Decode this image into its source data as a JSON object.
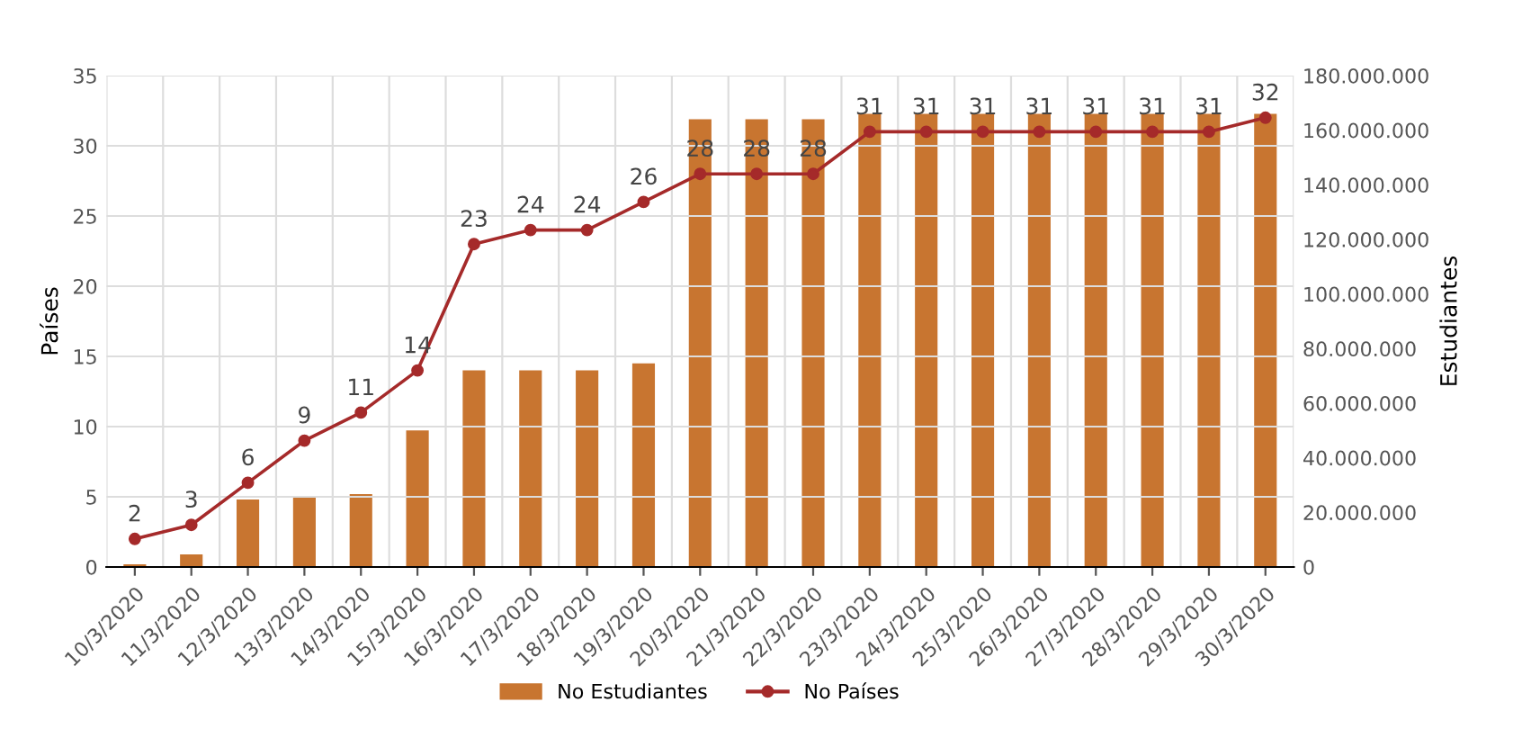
{
  "chart_data": {
    "type": "bar",
    "categories": [
      "10/3/2020",
      "11/3/2020",
      "12/3/2020",
      "13/3/2020",
      "14/3/2020",
      "15/3/2020",
      "16/3/2020",
      "17/3/2020",
      "18/3/2020",
      "19/3/2020",
      "20/3/2020",
      "21/3/2020",
      "22/3/2020",
      "23/3/2020",
      "24/3/2020",
      "25/3/2020",
      "26/3/2020",
      "27/3/2020",
      "28/3/2020",
      "29/3/2020",
      "30/3/2020"
    ],
    "series": [
      {
        "name": "No Estudiantes",
        "axis": "y2",
        "color": "#c87530",
        "values": [
          1000000,
          4600000,
          24700000,
          25700000,
          26700000,
          50000000,
          72000000,
          72000000,
          72000000,
          74600000,
          164000000,
          164000000,
          164000000,
          166000000,
          166000000,
          166000000,
          166000000,
          166000000,
          166000000,
          166000000,
          166000000
        ]
      },
      {
        "name": "No Países",
        "type": "line",
        "color": "#a52a2a",
        "marker": "circle",
        "data_labels": true,
        "values": [
          2,
          3,
          6,
          9,
          11,
          14,
          23,
          24,
          24,
          26,
          28,
          28,
          28,
          31,
          31,
          31,
          31,
          31,
          31,
          31,
          32
        ]
      }
    ],
    "ylabel": "Países",
    "y2label": "Estudiantes",
    "ylim": [
      0,
      35
    ],
    "yticks": [
      0,
      5,
      10,
      15,
      20,
      25,
      30,
      35
    ],
    "y2lim": [
      0,
      180000000
    ],
    "y2ticks": [
      0,
      {
        "value": 20000000,
        "label": "20.000.000"
      },
      {
        "value": 40000000,
        "label": "40.000.000"
      },
      {
        "value": 60000000,
        "label": "60.000.000"
      },
      {
        "value": 80000000,
        "label": "80.000.000"
      },
      {
        "value": 100000000,
        "label": "100.000.000"
      },
      {
        "value": 120000000,
        "label": "120.000.000"
      },
      {
        "value": 140000000,
        "label": "140.000.000"
      },
      {
        "value": 160000000,
        "label": "160.000.000"
      },
      {
        "value": 180000000,
        "label": "180.000.000"
      }
    ],
    "grid": "y",
    "legend": "bottom"
  }
}
